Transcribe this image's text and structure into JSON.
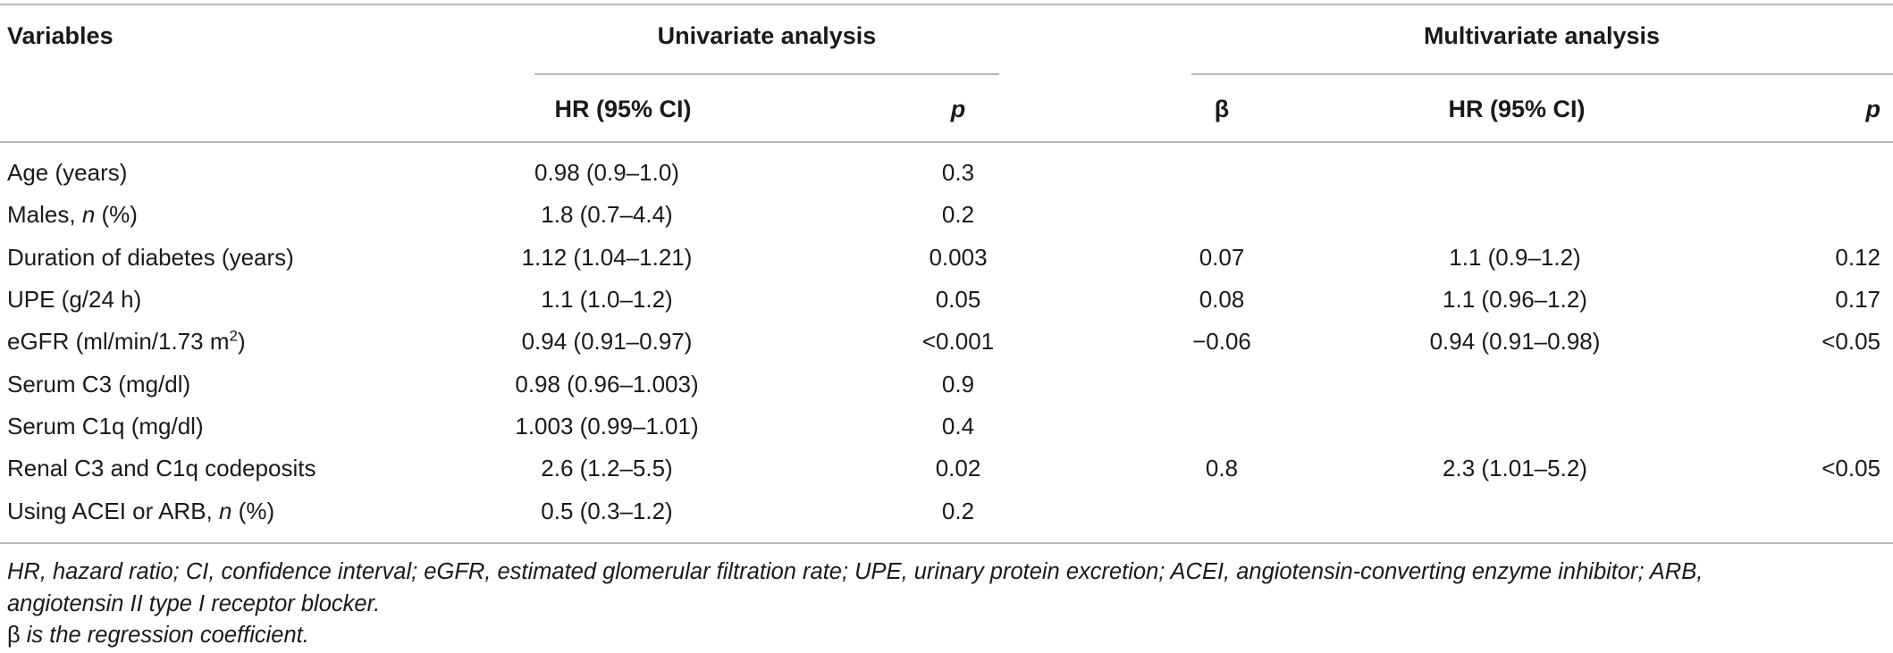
{
  "header": {
    "variables": "Variables",
    "univariate": "Univariate analysis",
    "multivariate": "Multivariate analysis",
    "uni_hr": "HR (95% CI)",
    "uni_p": "p",
    "multi_beta": "β",
    "multi_hr": "HR (95% CI)",
    "multi_p": "p"
  },
  "rows": [
    {
      "variable": "Age (years)",
      "uni_hr": "0.98 (0.9–1.0)",
      "uni_p": "0.3",
      "beta": "",
      "multi_hr": "",
      "multi_p": ""
    },
    {
      "variable_pre": "Males, ",
      "variable_italic": "n",
      "variable_post": " (%)",
      "uni_hr": "1.8 (0.7–4.4)",
      "uni_p": "0.2",
      "beta": "",
      "multi_hr": "",
      "multi_p": ""
    },
    {
      "variable": "Duration of diabetes (years)",
      "uni_hr": "1.12 (1.04–1.21)",
      "uni_p": "0.003",
      "beta": "0.07",
      "multi_hr": "1.1 (0.9–1.2)",
      "multi_p": "0.12"
    },
    {
      "variable": "UPE (g/24 h)",
      "uni_hr": "1.1 (1.0–1.2)",
      "uni_p": "0.05",
      "beta": "0.08",
      "multi_hr": "1.1 (0.96–1.2)",
      "multi_p": "0.17"
    },
    {
      "variable_pre": "eGFR (ml/min/1.73 m",
      "variable_sup": "2",
      "variable_post": ")",
      "uni_hr": "0.94 (0.91–0.97)",
      "uni_p": "<0.001",
      "beta": "−0.06",
      "multi_hr": "0.94 (0.91–0.98)",
      "multi_p": "<0.05"
    },
    {
      "variable": "Serum C3 (mg/dl)",
      "uni_hr": "0.98 (0.96–1.003)",
      "uni_p": "0.9",
      "beta": "",
      "multi_hr": "",
      "multi_p": ""
    },
    {
      "variable": "Serum C1q (mg/dl)",
      "uni_hr": "1.003 (0.99–1.01)",
      "uni_p": "0.4",
      "beta": "",
      "multi_hr": "",
      "multi_p": ""
    },
    {
      "variable": "Renal C3 and C1q codeposits",
      "uni_hr": "2.6 (1.2–5.5)",
      "uni_p": "0.02",
      "beta": "0.8",
      "multi_hr": "2.3 (1.01–5.2)",
      "multi_p": "<0.05"
    },
    {
      "variable_pre": "Using ACEI or ARB, ",
      "variable_italic": "n",
      "variable_post": " (%)",
      "uni_hr": "0.5 (0.3–1.2)",
      "uni_p": "0.2",
      "beta": "",
      "multi_hr": "",
      "multi_p": ""
    }
  ],
  "footnotes": {
    "abbrev_line1": "HR, hazard ratio; CI, confidence interval; eGFR, estimated glomerular filtration rate; UPE, urinary protein excretion; ACEI, angiotensin-converting enzyme inhibitor; ARB,",
    "abbrev_line2": "angiotensin II type I receptor blocker.",
    "beta_symbol": "β",
    "beta_text": " is the regression coefficient."
  }
}
